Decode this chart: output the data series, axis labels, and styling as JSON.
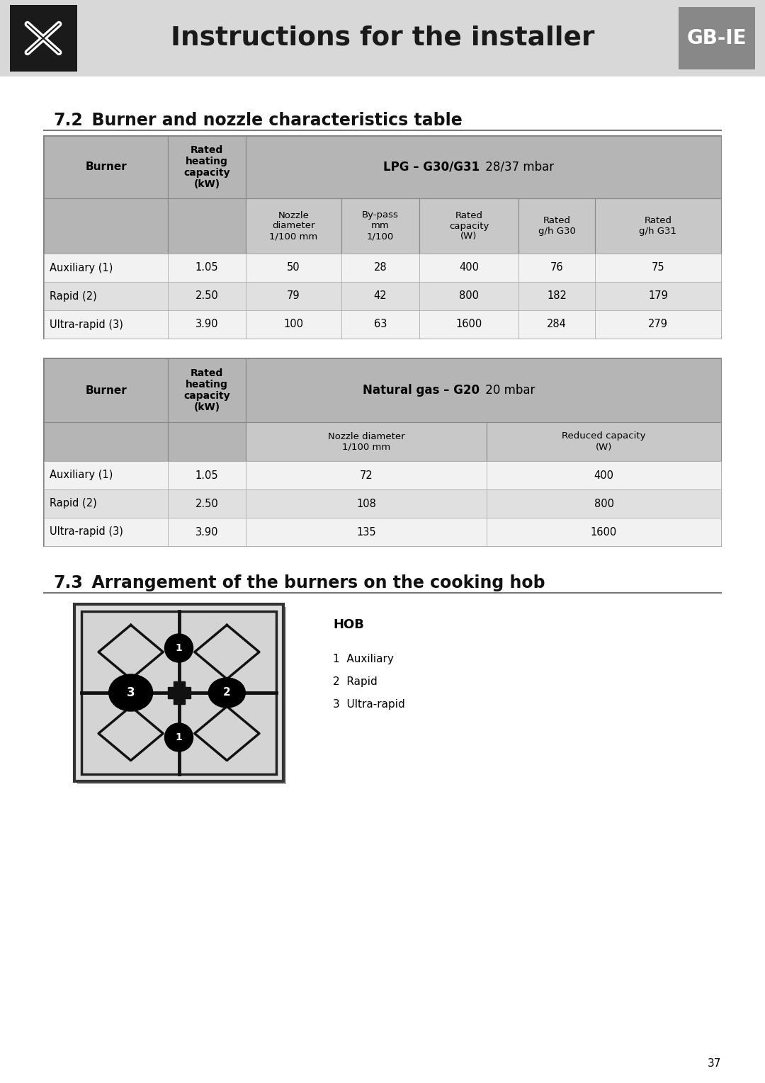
{
  "page_title": "Instructions for the installer",
  "gb_ie_label": "GB-IE",
  "section_72_title": "7.2",
  "section_72_rest": "  Burner and nozzle characteristics table",
  "section_73_title": "7.3",
  "section_73_rest": "  Arrangement of the burners on the cooking hob",
  "page_number": "37",
  "header_bg": "#d8d8d8",
  "header_text_color": "#1a1a1a",
  "icon_bg": "#1a1a1a",
  "gb_ie_bg": "#888888",
  "gb_ie_text": "#ffffff",
  "table_outer_bg": "#b5b5b5",
  "table_sub_bg": "#c8c8c8",
  "table_row1_bg": "#f2f2f2",
  "table_row2_bg": "#e0e0e0",
  "table_row3_bg": "#f2f2f2",
  "table_border": "#888888",
  "lpg_table": {
    "gas_label_bold": "LPG – G30/G31",
    "gas_label_normal": " 28/37 mbar",
    "rows": [
      [
        "Auxiliary (1)",
        "1.05",
        "50",
        "28",
        "400",
        "76",
        "75"
      ],
      [
        "Rapid (2)",
        "2.50",
        "79",
        "42",
        "800",
        "182",
        "179"
      ],
      [
        "Ultra-rapid (3)",
        "3.90",
        "100",
        "63",
        "1600",
        "284",
        "279"
      ]
    ]
  },
  "ng_table": {
    "gas_label_bold": "Natural gas – G20",
    "gas_label_normal": " 20 mbar",
    "rows": [
      [
        "Auxiliary (1)",
        "1.05",
        "72",
        "400"
      ],
      [
        "Rapid (2)",
        "2.50",
        "108",
        "800"
      ],
      [
        "Ultra-rapid (3)",
        "3.90",
        "135",
        "1600"
      ]
    ]
  },
  "hob_legend_title": "HOB",
  "hob_legend_items": [
    "1  Auxiliary",
    "2  Rapid",
    "3  Ultra-rapid"
  ],
  "bg_color": "#ffffff",
  "text_color": "#000000"
}
